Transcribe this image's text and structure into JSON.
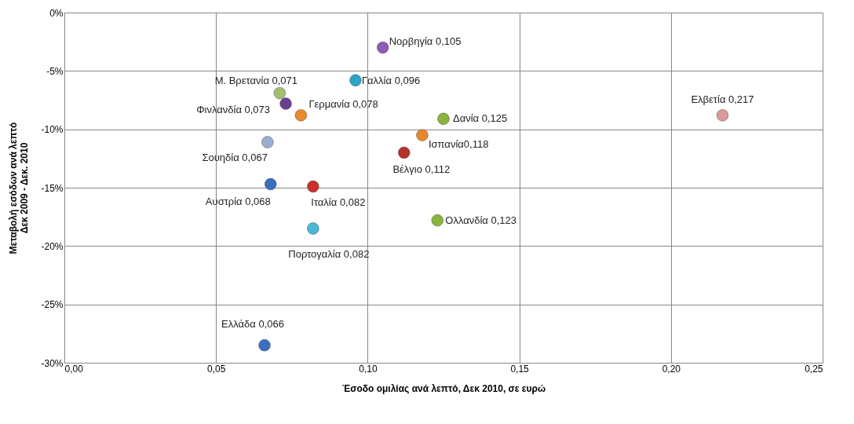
{
  "chart_data": {
    "type": "scatter",
    "xlabel": "Έσοδο ομιλίας ανά λεπτό, Δεκ 2010, σε ευρώ",
    "ylabel": "Μεταβολή εσόδων ανά λεπτό\nΔεκ 2009 - Δεκ. 2010",
    "x": [
      0.105,
      0.096,
      0.071,
      0.073,
      0.078,
      0.125,
      0.217,
      0.118,
      0.112,
      0.067,
      0.068,
      0.082,
      0.123,
      0.082,
      0.066
    ],
    "values": [
      -3.0,
      -5.8,
      -6.9,
      -7.8,
      -8.8,
      -9.1,
      -8.8,
      -10.5,
      -12.0,
      -11.1,
      -14.7,
      -14.9,
      -17.8,
      -18.5,
      -28.5
    ],
    "colors": [
      "#8e5bb5",
      "#2aa6c4",
      "#a0c070",
      "#6a3f8f",
      "#e88a2a",
      "#8ab43c",
      "#d99a9a",
      "#e8862a",
      "#b8302a",
      "#9ab0d0",
      "#3a6fc0",
      "#c8302a",
      "#8ab43c",
      "#4ab8d8",
      "#3a6fc0"
    ],
    "value_labels": [
      "Νορβηγία 0,105",
      "Γαλλία 0,096",
      "Μ. Βρετανία 0,071",
      "Φινλανδία 0,073",
      "Γερμανία 0,078",
      "Δανία 0,125",
      "Ελβετία 0,217",
      "Ισπανία0,118",
      "Βέλγιο 0,112",
      "Σουηδία 0,067",
      "Αυστρία 0,068",
      "Ιταλία 0,082",
      "Ολλανδία 0,123",
      "Πορτογαλία 0,082",
      "Ελλάδα 0,066"
    ],
    "marker": "circle",
    "grid": true,
    "legend": false,
    "xlim": [
      0,
      0.25
    ],
    "xticks": [
      {
        "value": 0,
        "label": "0,00"
      },
      {
        "value": 0.05,
        "label": "0,05"
      },
      {
        "value": 0.1,
        "label": "0,10"
      },
      {
        "value": 0.15,
        "label": "0,15"
      },
      {
        "value": 0.2,
        "label": "0,20"
      },
      {
        "value": 0.25,
        "label": "0,25"
      }
    ],
    "ylim": [
      -30,
      0
    ],
    "yticks": [
      {
        "value": -30,
        "label": "-30%"
      },
      {
        "value": -25,
        "label": "-25%"
      },
      {
        "value": -20,
        "label": "-20%"
      },
      {
        "value": -15,
        "label": "-15%"
      },
      {
        "value": -10,
        "label": "-10%"
      },
      {
        "value": -5,
        "label": "-5%"
      },
      {
        "value": 0,
        "label": "0%"
      }
    ]
  }
}
